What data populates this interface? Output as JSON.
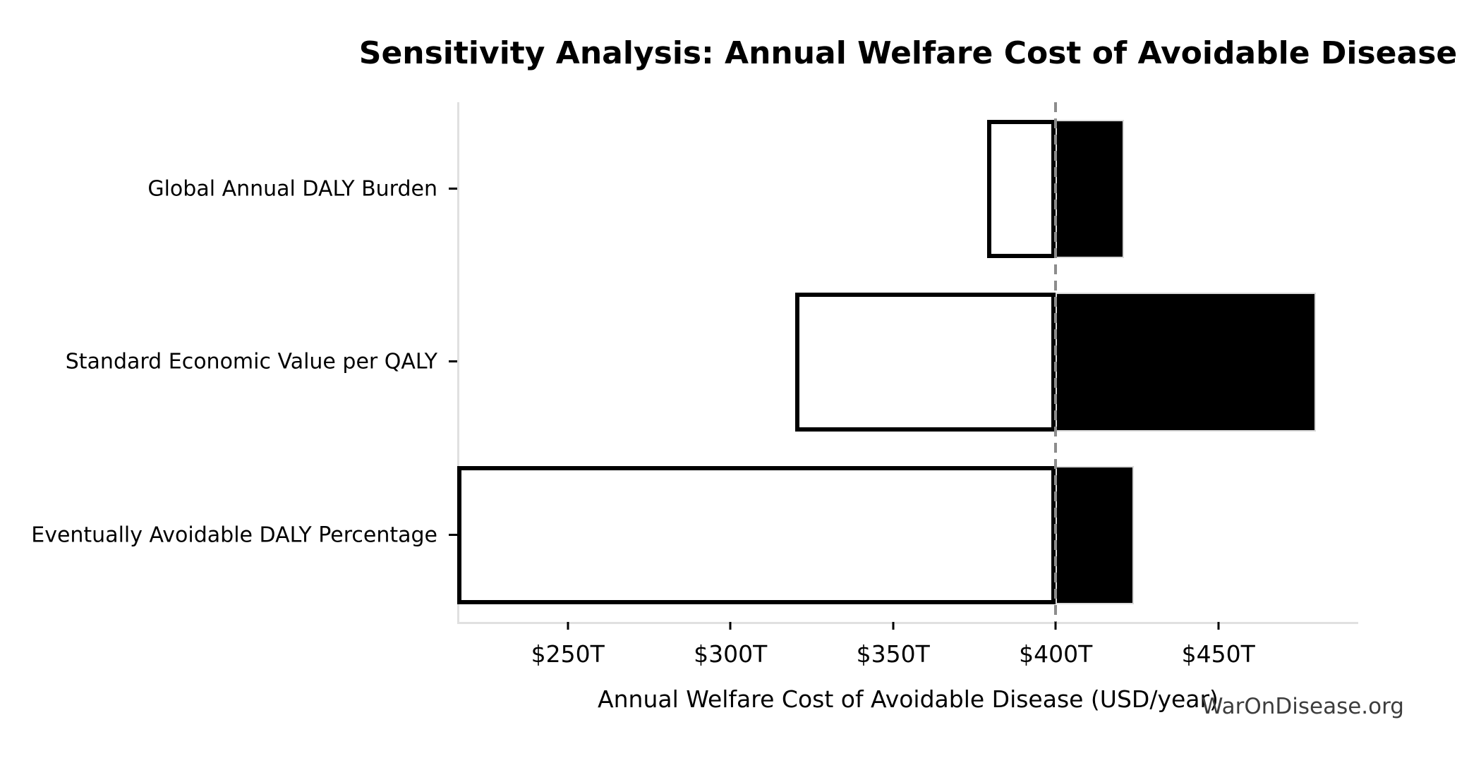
{
  "title": "Sensitivity Analysis: Annual Welfare Cost of Avoidable Disease",
  "watermark": "WarOnDisease.org",
  "chart_data": {
    "type": "bar",
    "subtype": "tornado-sensitivity",
    "orientation": "horizontal",
    "title": "Sensitivity Analysis: Annual Welfare Cost of Avoidable Disease",
    "xlabel": "Annual Welfare Cost of Avoidable Disease (USD/year)",
    "categories": [
      "Global Annual DALY Burden",
      "Standard Economic Value per QALY",
      "Eventually Avoidable DALY Percentage"
    ],
    "baseline": 400,
    "bars": [
      {
        "label": "Global Annual DALY Burden",
        "low": 379,
        "high": 421
      },
      {
        "label": "Standard Economic Value per QALY",
        "low": 320,
        "high": 480
      },
      {
        "label": "Eventually Avoidable DALY Percentage",
        "low": 216,
        "high": 424
      }
    ],
    "x_ticks": [
      {
        "value": 250,
        "label": "$250T"
      },
      {
        "value": 300,
        "label": "$300T"
      },
      {
        "value": 350,
        "label": "$350T"
      },
      {
        "value": 400,
        "label": "$400T"
      },
      {
        "value": 450,
        "label": "$450T"
      }
    ],
    "axis_range": [
      216,
      493
    ],
    "grid": false,
    "legend": null,
    "colors": {
      "low_fill": "#ffffff",
      "low_edge": "#000000",
      "high_fill": "#000000",
      "baseline_line": "#8c8c8c",
      "spine": "#e0e0e0",
      "tick": "#000000",
      "text": "#000000",
      "watermark": "#3d3d3d"
    }
  }
}
